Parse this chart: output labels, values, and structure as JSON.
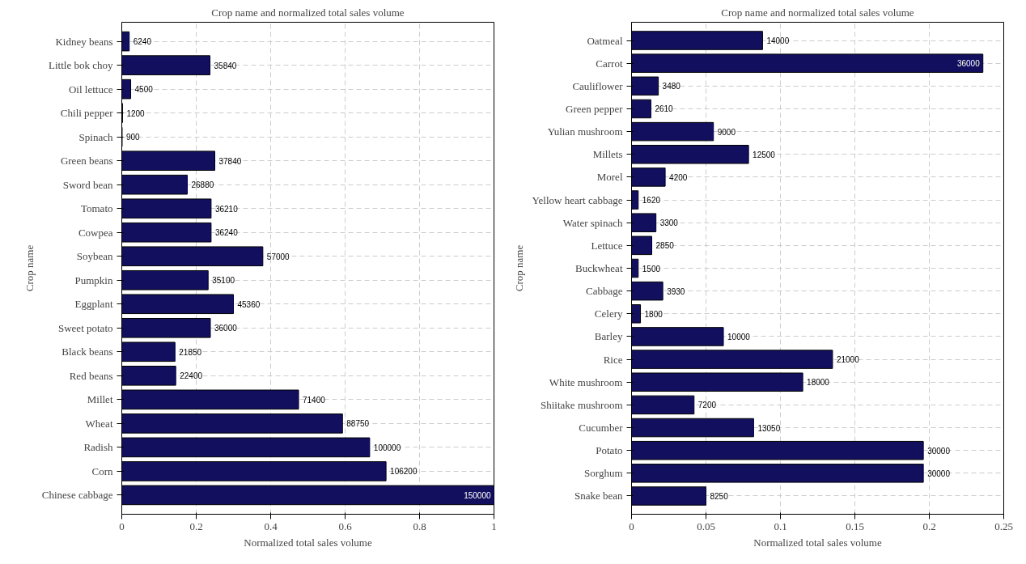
{
  "chart_data": [
    {
      "type": "bar",
      "orientation": "horizontal",
      "title": "Crop name and normalized total sales volume",
      "xlabel": "Normalized total sales volume",
      "ylabel": "Crop name",
      "categories": [
        "Kidney beans",
        "Little bok choy",
        "Oil lettuce",
        "Chili pepper",
        "Spinach",
        "Green beans",
        "Sword bean",
        "Tomato",
        "Cowpea",
        "Soybean",
        "Pumpkin",
        "Eggplant",
        "Sweet potato",
        "Black beans",
        "Red beans",
        "Millet",
        "Wheat",
        "Radish",
        "Corn",
        "Chinese cabbage"
      ],
      "values": [
        0.02,
        0.237,
        0.024,
        0.002,
        0.001,
        0.25,
        0.176,
        0.24,
        0.24,
        0.379,
        0.232,
        0.3,
        0.238,
        0.143,
        0.145,
        0.475,
        0.593,
        0.666,
        0.71,
        1.0
      ],
      "annotations": [
        {
          "text": "6240",
          "x": 0.02,
          "y": "Kidney beans"
        },
        {
          "text": "35840",
          "x": 0.237,
          "y": "Little bok choy"
        },
        {
          "text": "4500",
          "x": 0.024,
          "y": "Oil lettuce"
        },
        {
          "text": "1200",
          "x": 0.002,
          "y": "Chili pepper"
        },
        {
          "text": "900",
          "x": 0.001,
          "y": "Spinach"
        },
        {
          "text": "37840",
          "x": 0.25,
          "y": "Green beans"
        },
        {
          "text": "26880",
          "x": 0.176,
          "y": "Sword bean"
        },
        {
          "text": "36210",
          "x": 0.24,
          "y": "Tomato"
        },
        {
          "text": "36240",
          "x": 0.24,
          "y": "Cowpea"
        },
        {
          "text": "57000",
          "x": 0.379,
          "y": "Soybean"
        },
        {
          "text": "35100",
          "x": 0.232,
          "y": "Pumpkin"
        },
        {
          "text": "45360",
          "x": 0.3,
          "y": "Eggplant"
        },
        {
          "text": "36000",
          "x": 0.238,
          "y": "Sweet potato"
        },
        {
          "text": "21850",
          "x": 0.143,
          "y": "Black beans"
        },
        {
          "text": "22400",
          "x": 0.145,
          "y": "Red beans"
        },
        {
          "text": "71400",
          "x": 0.475,
          "y": "Millet"
        },
        {
          "text": "88750",
          "x": 0.593,
          "y": "Wheat"
        },
        {
          "text": "100000",
          "x": 0.666,
          "y": "Radish"
        },
        {
          "text": "106200",
          "x": 0.71,
          "y": "Corn"
        },
        {
          "text": "150000",
          "x": 1.0,
          "y": "Chinese cabbage"
        }
      ],
      "color": "#12105e",
      "xlim": [
        0,
        1
      ],
      "xticks": [
        0,
        0.2,
        0.4,
        0.6,
        0.8,
        1
      ],
      "grid": true
    },
    {
      "type": "bar",
      "orientation": "horizontal",
      "title": "Crop name and normalized total sales volume",
      "xlabel": "Normalized total sales volume",
      "ylabel": "Crop name",
      "categories": [
        "Oatmeal",
        "Carrot",
        "Cauliflower",
        "Green pepper",
        "Yulian mushroom",
        "Millets",
        "Morel",
        "Yellow heart cabbage",
        "Water spinach",
        "Lettuce",
        "Buckwheat",
        "Cabbage",
        "Celery",
        "Barley",
        "Rice",
        "White mushroom",
        "Shiitake mushroom",
        "Cucumber",
        "Potato",
        "Sorghum",
        "Snake bean"
      ],
      "values": [
        0.088,
        0.236,
        0.018,
        0.013,
        0.055,
        0.0786,
        0.0226,
        0.0045,
        0.0164,
        0.0136,
        0.0045,
        0.021,
        0.006,
        0.0617,
        0.135,
        0.115,
        0.042,
        0.082,
        0.196,
        0.196,
        0.05
      ],
      "annotations": [
        {
          "text": "14000",
          "x": 0.088,
          "y": "Oatmeal"
        },
        {
          "text": "36000",
          "x": 0.236,
          "y": "Carrot"
        },
        {
          "text": "3480",
          "x": 0.018,
          "y": "Cauliflower"
        },
        {
          "text": "2610",
          "x": 0.013,
          "y": "Green pepper"
        },
        {
          "text": "9000",
          "x": 0.055,
          "y": "Yulian mushroom"
        },
        {
          "text": "12500",
          "x": 0.0786,
          "y": "Millets"
        },
        {
          "text": "4200",
          "x": 0.0226,
          "y": "Morel"
        },
        {
          "text": "1620",
          "x": 0.0045,
          "y": "Yellow heart cabbage"
        },
        {
          "text": "3300",
          "x": 0.0164,
          "y": "Water spinach"
        },
        {
          "text": "2850",
          "x": 0.0136,
          "y": "Lettuce"
        },
        {
          "text": "1500",
          "x": 0.0045,
          "y": "Buckwheat"
        },
        {
          "text": "3930",
          "x": 0.021,
          "y": "Cabbage"
        },
        {
          "text": "1800",
          "x": 0.006,
          "y": "Celery"
        },
        {
          "text": "10000",
          "x": 0.0617,
          "y": "Barley"
        },
        {
          "text": "21000",
          "x": 0.135,
          "y": "Rice"
        },
        {
          "text": "18000",
          "x": 0.115,
          "y": "White mushroom"
        },
        {
          "text": "7200",
          "x": 0.042,
          "y": "Shiitake mushroom"
        },
        {
          "text": "13050",
          "x": 0.082,
          "y": "Cucumber"
        },
        {
          "text": "30000",
          "x": 0.196,
          "y": "Potato"
        },
        {
          "text": "30000",
          "x": 0.196,
          "y": "Sorghum"
        },
        {
          "text": "8250",
          "x": 0.05,
          "y": "Snake bean"
        }
      ],
      "color": "#12105e",
      "xlim": [
        0,
        0.25
      ],
      "xticks": [
        0,
        0.05,
        0.1,
        0.15,
        0.2,
        0.25
      ],
      "grid": true
    }
  ]
}
